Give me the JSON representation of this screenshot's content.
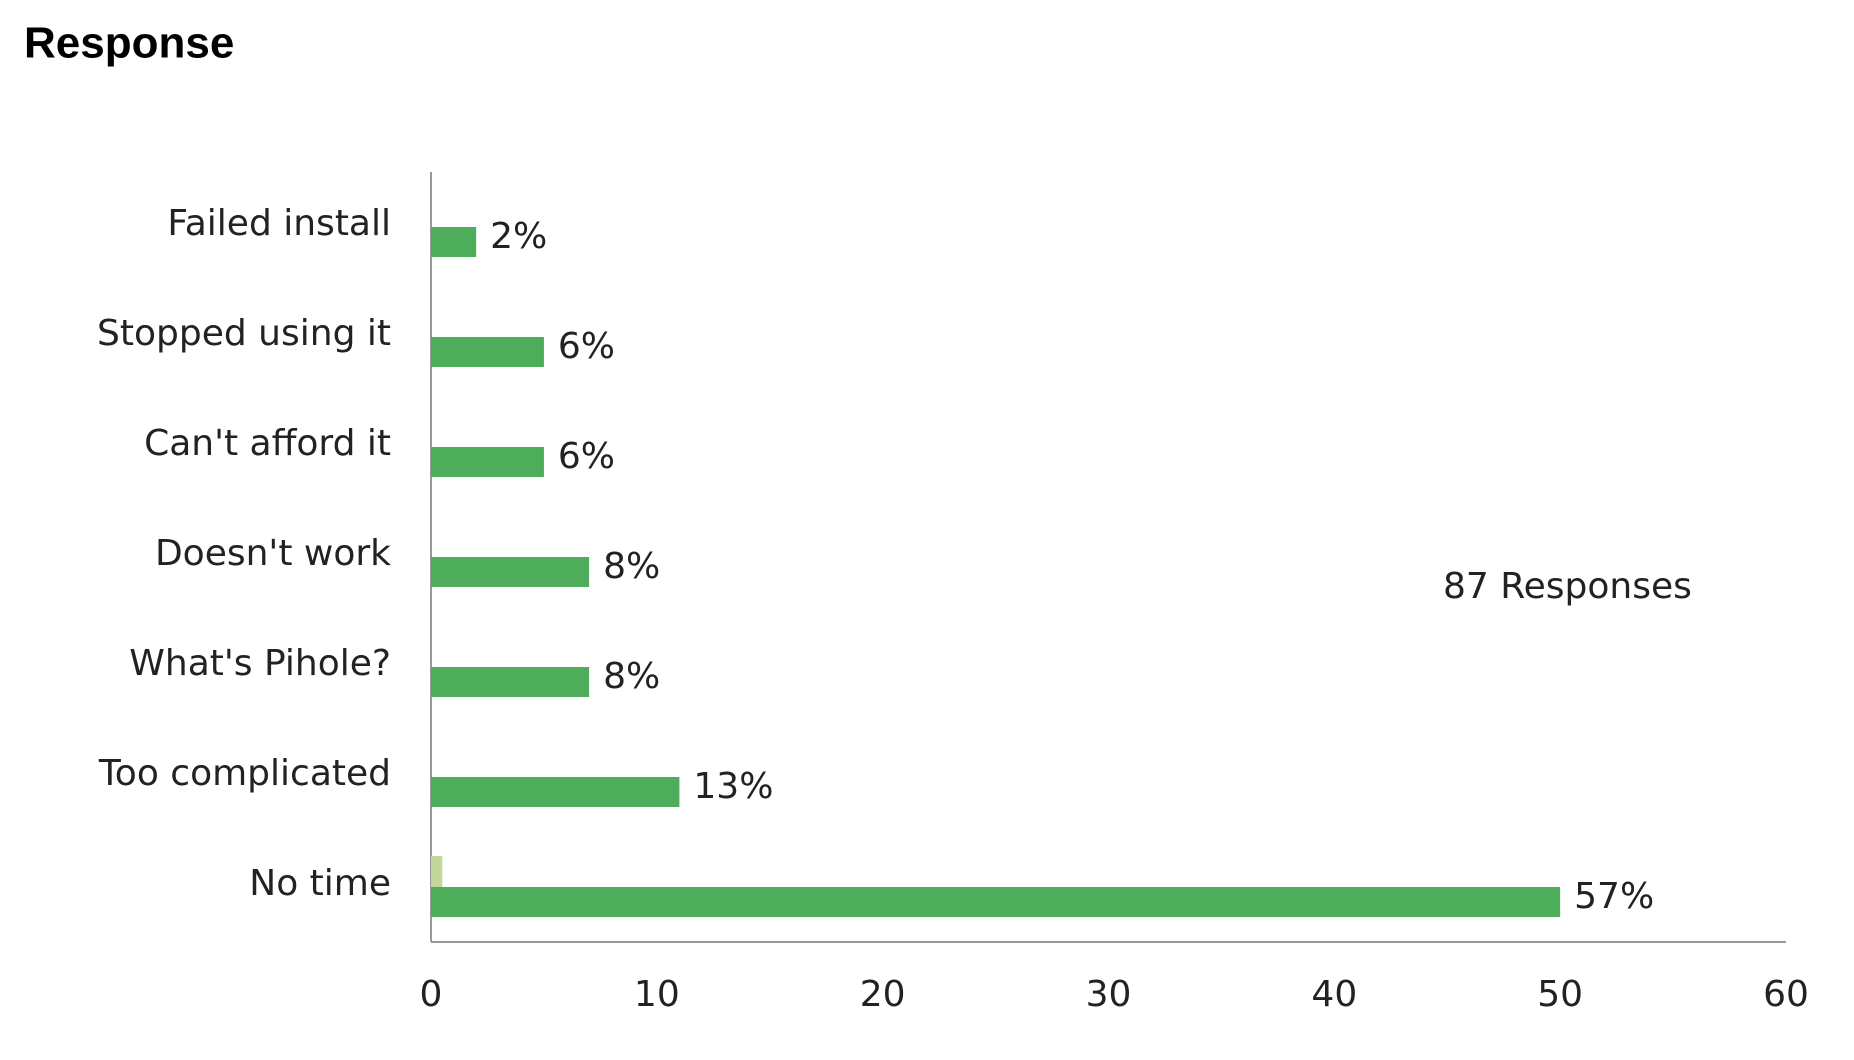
{
  "chart_data": {
    "type": "bar",
    "orientation": "horizontal",
    "title": "Response",
    "annotation": "87 Responses",
    "categories": [
      "Failed install",
      "Stopped using it",
      "Can't afford it",
      "Doesn't work",
      "What's Pihole?",
      "Too complicated",
      "No time"
    ],
    "series": [
      {
        "color": "#c4d79b",
        "values": [
          0,
          0,
          0,
          0,
          0,
          0,
          0.5
        ]
      },
      {
        "color": "#4ead5b",
        "values": [
          2,
          5,
          5,
          7,
          7,
          11,
          50
        ],
        "value_labels": [
          "2%",
          "6%",
          "6%",
          "8%",
          "8%",
          "13%",
          "57%"
        ]
      }
    ],
    "xlim": [
      0,
      60
    ],
    "xticks": [
      0,
      10,
      20,
      30,
      40,
      50,
      60
    ],
    "grid": false
  }
}
